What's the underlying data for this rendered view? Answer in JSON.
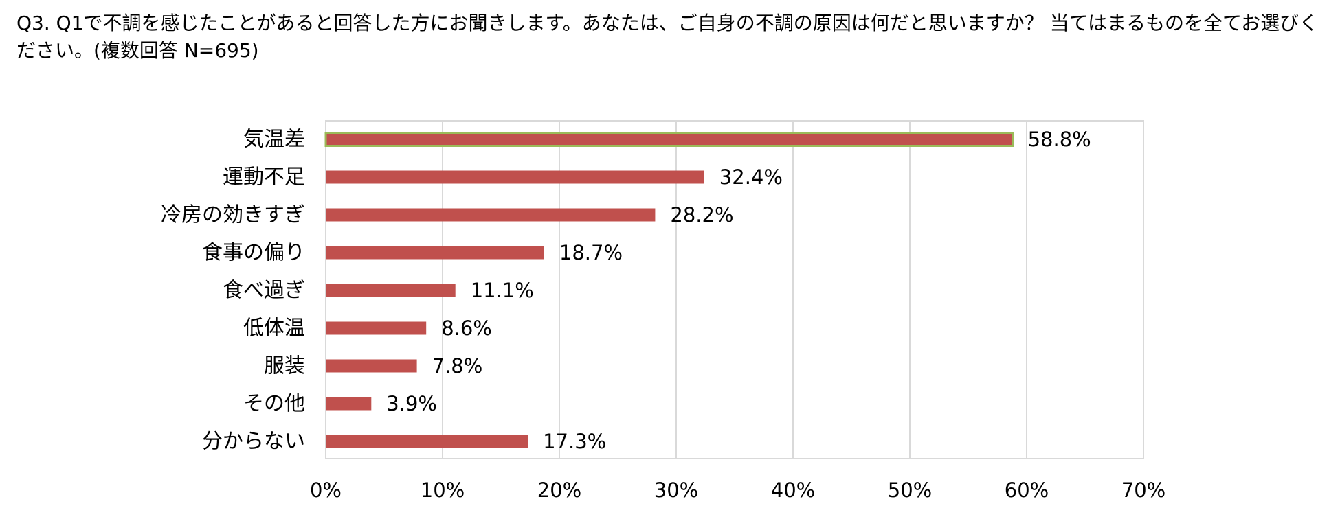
{
  "question": "Q3. Q1で不調を感じたことがあると回答した方にお聞きします。あなたは、ご自身の不調の原因は何だと思いますか？ 当てはまるものを全てお選びください。(複数回答 N=695)",
  "colors": {
    "bar": "#c0504d",
    "highlight_outline": "#9bbb59",
    "grid": "#d9d9d9",
    "text": "#000000"
  },
  "chart_data": {
    "type": "bar",
    "orientation": "horizontal",
    "title": "",
    "xlabel": "",
    "ylabel": "",
    "categories": [
      "気温差",
      "運動不足",
      "冷房の効きすぎ",
      "食事の偏り",
      "食べ過ぎ",
      "低体温",
      "服装",
      "その他",
      "分からない"
    ],
    "values": [
      58.8,
      32.4,
      28.2,
      18.7,
      11.1,
      8.6,
      7.8,
      3.9,
      17.3
    ],
    "data_labels": [
      "58.8%",
      "32.4%",
      "28.2%",
      "18.7%",
      "11.1%",
      "8.6%",
      "7.8%",
      "3.9%",
      "17.3%"
    ],
    "xlim": [
      0,
      70
    ],
    "xticks": [
      0,
      10,
      20,
      30,
      40,
      50,
      60,
      70
    ],
    "xtick_labels": [
      "0%",
      "10%",
      "20%",
      "30%",
      "40%",
      "50%",
      "60%",
      "70%"
    ],
    "highlighted_category": "気温差",
    "grid": true,
    "legend": "none"
  }
}
